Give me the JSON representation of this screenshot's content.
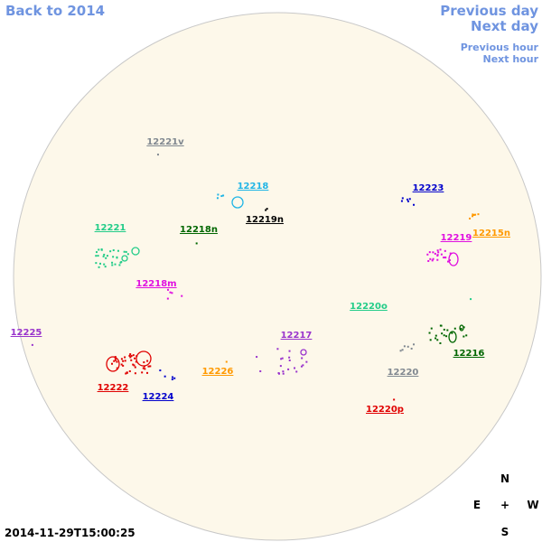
{
  "navigation": {
    "back": "Back to 2014",
    "previous_day": "Previous day",
    "next_day": "Next day",
    "previous_hour": "Previous hour",
    "next_hour": "Next hour"
  },
  "timestamp": "2014-11-29T15:00:25",
  "compass": {
    "north": "N",
    "east": "E",
    "center": "+",
    "west": "W",
    "south": "S"
  },
  "regions": [
    {
      "label": "12221v",
      "color": "#808890"
    },
    {
      "label": "12218",
      "color": "#1fb5e6"
    },
    {
      "label": "12219n",
      "color": "#000000"
    },
    {
      "label": "12223",
      "color": "#0000cc"
    },
    {
      "label": "12215n",
      "color": "#ff9900"
    },
    {
      "label": "12219",
      "color": "#e010e0"
    },
    {
      "label": "12221",
      "color": "#22cc88"
    },
    {
      "label": "12218n",
      "color": "#006600"
    },
    {
      "label": "12218m",
      "color": "#e010e0"
    },
    {
      "label": "12220o",
      "color": "#22cc88"
    },
    {
      "label": "12225",
      "color": "#9933cc"
    },
    {
      "label": "12217",
      "color": "#9933cc"
    },
    {
      "label": "12216",
      "color": "#006600"
    },
    {
      "label": "12226",
      "color": "#ff9900"
    },
    {
      "label": "12220",
      "color": "#808890"
    },
    {
      "label": "12222",
      "color": "#e00000"
    },
    {
      "label": "12224",
      "color": "#0000cc"
    },
    {
      "label": "12220p",
      "color": "#e00000"
    }
  ]
}
